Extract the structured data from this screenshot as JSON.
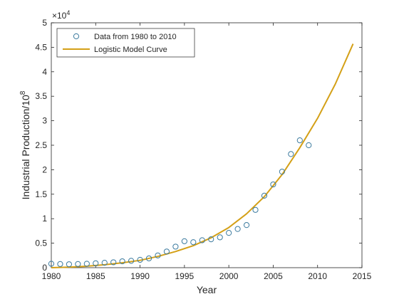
{
  "chart_data": {
    "type": "scatter",
    "xlabel": "Year",
    "ylabel_main": "Industrial Production/10",
    "ylabel_sup": "8",
    "y_exponent_base": "×10",
    "y_exponent_power": "4",
    "xlim": [
      1980,
      2015
    ],
    "ylim": [
      0,
      5
    ],
    "xticks": [
      1980,
      1985,
      1990,
      1995,
      2000,
      2005,
      2010,
      2015
    ],
    "yticks": [
      0,
      0.5,
      1,
      1.5,
      2,
      2.5,
      3,
      3.5,
      4,
      4.5,
      5
    ],
    "ytick_labels": [
      "0",
      "0.5",
      "1",
      "1.5",
      "2",
      "2.5",
      "3",
      "3.5",
      "4",
      "4.5",
      "5"
    ],
    "legend_position": "top-left",
    "series": [
      {
        "name": "Data from 1980 to 2010",
        "kind": "markers",
        "color": "#3b7a9e",
        "x": [
          1980,
          1981,
          1982,
          1983,
          1984,
          1985,
          1986,
          1987,
          1988,
          1989,
          1990,
          1991,
          1992,
          1993,
          1994,
          1995,
          1996,
          1997,
          1998,
          1999,
          2000,
          2001,
          2002,
          2003,
          2004,
          2005,
          2006,
          2007,
          2008,
          2009
        ],
        "y": [
          0.08,
          0.075,
          0.07,
          0.075,
          0.08,
          0.09,
          0.1,
          0.11,
          0.13,
          0.14,
          0.16,
          0.19,
          0.25,
          0.33,
          0.43,
          0.54,
          0.52,
          0.56,
          0.58,
          0.62,
          0.71,
          0.79,
          0.87,
          1.18,
          1.47,
          1.7,
          1.96,
          2.32,
          2.6,
          2.5
        ]
      },
      {
        "name": "Logistic Model Curve",
        "kind": "line",
        "color": "#d4a017",
        "x": [
          1980,
          1982,
          1984,
          1986,
          1988,
          1990,
          1992,
          1994,
          1996,
          1998,
          2000,
          2002,
          2004,
          2006,
          2008,
          2010,
          2012,
          2014
        ],
        "y": [
          0.0,
          0.01,
          0.03,
          0.06,
          0.1,
          0.15,
          0.23,
          0.33,
          0.45,
          0.61,
          0.82,
          1.1,
          1.45,
          1.9,
          2.45,
          3.05,
          3.75,
          4.57
        ]
      }
    ]
  }
}
